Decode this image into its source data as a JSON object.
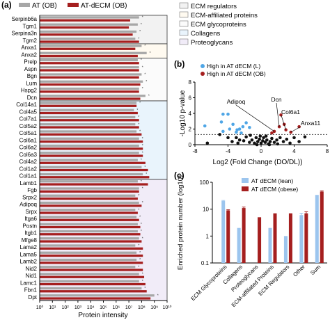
{
  "colors": {
    "at_ob": "#a7a7a7",
    "at_decm_ob": "#a51f1f",
    "lean": "#9cc5ee",
    "obese": "#a51f1f",
    "ecm_regulators_bg": "#f2f2f2",
    "affiliated_bg": "#fffaf0",
    "glycoproteins_bg": "#fbfbfb",
    "collagens_bg": "#e9f4fc",
    "proteoglycans_bg": "#f1ecf8",
    "volcano_blue": "#4fa6e6",
    "volcano_red": "#a51f1f",
    "volcano_black": "#111111"
  },
  "panel_a": {
    "label": "(a)",
    "legend": [
      "AT (OB)",
      "AT-dECM (OB)"
    ],
    "xlabel": "Protein intensity",
    "xtick_labels": [
      "10⁰",
      "10¹",
      "10²",
      "10³",
      "10⁴",
      "10⁵",
      "10⁶",
      "10⁷",
      "10⁸",
      "10⁹",
      "10¹⁰"
    ],
    "category_legend": [
      "ECM regulators",
      "ECM-affiliated proteins",
      "ECM glycoproteins",
      "Collagens",
      "Proteoglycans"
    ]
  },
  "panel_b": {
    "label": "(b)",
    "legend": [
      "High in AT dECM (L)",
      "High in AT dECM (OB)"
    ],
    "xlabel": "Log2 (Fold Change (DO/DL))",
    "ylabel": "-Log10 p-value",
    "annotations": [
      "Adipoq",
      "Dcn",
      "Col6a1",
      "Anxa11"
    ],
    "xtick_labels": [
      "-8",
      "-4",
      "0",
      "4",
      "8"
    ],
    "ytick_labels": [
      "0",
      "2",
      "4",
      "6",
      "8"
    ]
  },
  "panel_c": {
    "label": "(c)",
    "legend": [
      "AT dECM (lean)",
      "AT dECM (obese)"
    ],
    "ylabel": "Enriched protein number (log10)",
    "ytick_labels": [
      "100",
      "10",
      "1",
      "0.1"
    ]
  },
  "chart_data": [
    {
      "type": "bar",
      "orientation": "horizontal",
      "scale": "log10",
      "xlim": [
        1,
        10000000000
      ],
      "categories": [
        "Serpinb6a",
        "Tgm1",
        "Serpina3n",
        "Tgm2",
        "Anxa1",
        "Anxa2",
        "Prelp",
        "Aspn",
        "Bgn",
        "Lum",
        "Hspg2",
        "Dcn",
        "Col14a1",
        "Col4a5",
        "Col7a1",
        "Col5a2",
        "Col5a1",
        "Col6a1",
        "Col6a2",
        "Col6a3",
        "Col4a2",
        "Col1a2",
        "Col1a1",
        "Lamb1",
        "Fgb",
        "Srpx2",
        "Adipoq",
        "Srpx",
        "Itga6",
        "Postn",
        "Itgb1",
        "Mfge8",
        "Lama2",
        "Lama5",
        "Lamb2",
        "Nid2",
        "Nid1",
        "Lamc1",
        "Fbn1",
        "Dpt"
      ],
      "groups": [
        {
          "name": "ECM regulators",
          "members": [
            "Serpinb6a",
            "Tgm1",
            "Serpina3n",
            "Tgm2"
          ]
        },
        {
          "name": "ECM-affiliated proteins",
          "members": [
            "Anxa1",
            "Anxa2"
          ]
        },
        {
          "name": "Proteoglycans",
          "members": [
            "Prelp",
            "Aspn",
            "Bgn",
            "Lum",
            "Hspg2",
            "Dcn"
          ]
        },
        {
          "name": "Collagens",
          "members": [
            "Col14a1",
            "Col4a5",
            "Col7a1",
            "Col5a2",
            "Col5a1",
            "Col6a1",
            "Col6a2",
            "Col6a3",
            "Col4a2",
            "Col1a2",
            "Col1a1"
          ]
        },
        {
          "name": "ECM glycoproteins",
          "members": [
            "Lamb1",
            "Fgb",
            "Srpx2",
            "Adipoq",
            "Srpx",
            "Itga6",
            "Postn",
            "Itgb1",
            "Mfge8",
            "Lama2",
            "Lama5",
            "Lamb2",
            "Nid2",
            "Nid1",
            "Lamc1",
            "Fbn1",
            "Dpt"
          ]
        }
      ],
      "series": [
        {
          "name": "AT (OB)",
          "values": [
            63000000,
            50000000,
            40000000,
            32000000,
            100000000,
            250000000,
            50000000,
            63000000,
            100000000,
            126000000,
            63000000,
            200000000,
            40000000,
            25000000,
            32000000,
            32000000,
            40000000,
            63000000,
            63000000,
            63000000,
            50000000,
            100000000,
            126000000,
            50000000,
            63000000,
            32000000,
            63000000,
            32000000,
            40000000,
            50000000,
            50000000,
            63000000,
            32000000,
            40000000,
            40000000,
            32000000,
            63000000,
            63000000,
            100000000,
            1000000000
          ]
        },
        {
          "name": "AT-dECM (OB)",
          "values": [
            12600000,
            10000000,
            20000000,
            63000000,
            32000000,
            50000000,
            63000000,
            63000000,
            63000000,
            79000000,
            63000000,
            79000000,
            40000000,
            50000000,
            63000000,
            63000000,
            100000000,
            126000000,
            126000000,
            126000000,
            200000000,
            316000000,
            398000000,
            316000000,
            63000000,
            50000000,
            100000000,
            50000000,
            63000000,
            79000000,
            79000000,
            100000000,
            126000000,
            126000000,
            126000000,
            126000000,
            158000000,
            200000000,
            251000000,
            500000000
          ]
        }
      ]
    },
    {
      "type": "scatter",
      "xlim": [
        -8,
        8
      ],
      "ylim": [
        0,
        8
      ],
      "threshold_y": 1.3,
      "series": [
        {
          "name": "High in AT dECM (L)",
          "points": [
            [
              -6.8,
              2.4
            ],
            [
              -4.6,
              3.9
            ],
            [
              -4.0,
              3.9
            ],
            [
              -4.8,
              2.9
            ],
            [
              -3.4,
              2.6
            ],
            [
              -2.6,
              2.0
            ],
            [
              -2.2,
              2.3
            ],
            [
              -3.8,
              2.0
            ],
            [
              -1.8,
              2.8
            ],
            [
              -2.4,
              1.5
            ],
            [
              -3.0,
              1.6
            ],
            [
              -1.4,
              2.2
            ],
            [
              -4.6,
              1.7
            ],
            [
              -2.9,
              1.9
            ]
          ]
        },
        {
          "name": "High in AT dECM (OB)",
          "points": [
            [
              2.4,
              3.8
            ],
            [
              2.2,
              2.3
            ],
            [
              2.8,
              2.6
            ],
            [
              3.0,
              1.9
            ],
            [
              1.6,
              1.7
            ],
            [
              4.6,
              2.3
            ],
            [
              1.3,
              1.5
            ],
            [
              3.6,
              1.6
            ]
          ]
        },
        {
          "name": "Not significant",
          "points": [
            [
              -6.5,
              0.2
            ],
            [
              -5.0,
              1.3
            ],
            [
              -4.0,
              0.9
            ],
            [
              -3.5,
              0.4
            ],
            [
              -3.0,
              0.9
            ],
            [
              -2.6,
              0.6
            ],
            [
              -2.1,
              0.5
            ],
            [
              -1.8,
              1.0
            ],
            [
              -1.4,
              0.3
            ],
            [
              -1.1,
              0.6
            ],
            [
              -0.8,
              0.2
            ],
            [
              -0.6,
              0.9
            ],
            [
              -0.4,
              0.4
            ],
            [
              -0.2,
              0.7
            ],
            [
              0.0,
              0.2
            ],
            [
              0.2,
              0.5
            ],
            [
              0.3,
              0.9
            ],
            [
              0.5,
              0.3
            ],
            [
              0.7,
              0.6
            ],
            [
              0.9,
              0.1
            ],
            [
              1.1,
              0.4
            ],
            [
              1.3,
              0.8
            ],
            [
              1.6,
              0.3
            ],
            [
              1.9,
              0.6
            ],
            [
              2.3,
              0.9
            ],
            [
              2.7,
              0.4
            ],
            [
              3.1,
              0.7
            ],
            [
              3.5,
              0.2
            ],
            [
              4.0,
              0.9
            ],
            [
              4.6,
              0.4
            ],
            [
              5.3,
              1.0
            ],
            [
              -0.1,
              1.1
            ],
            [
              0.6,
              1.1
            ],
            [
              -1.3,
              1.2
            ],
            [
              1.0,
              0.0
            ],
            [
              -0.5,
              0.0
            ],
            [
              2.0,
              0.1
            ],
            [
              -2.8,
              0.2
            ]
          ]
        }
      ],
      "annotated_points": [
        {
          "label": "Adipoq",
          "x": 1.6,
          "y": 1.7
        },
        {
          "label": "Dcn",
          "x": 2.2,
          "y": 2.3
        },
        {
          "label": "Col6a1",
          "x": 3.0,
          "y": 1.9
        },
        {
          "label": "Anxa11",
          "x": 3.6,
          "y": 1.6
        }
      ]
    },
    {
      "type": "bar",
      "scale": "log10",
      "ylim": [
        0.1,
        100
      ],
      "categories": [
        "ECM Glycoproteins",
        "Collagens",
        "Proteoglycans",
        "ECM-affiliated Proteins",
        "ECM Regulators",
        "Other",
        "Sum"
      ],
      "series": [
        {
          "name": "AT dECM (lean)",
          "values": [
            20,
            2,
            0,
            2,
            1,
            6,
            32
          ],
          "errors": [
            1,
            0,
            0,
            0,
            0,
            1,
            1
          ]
        },
        {
          "name": "AT dECM (obese)",
          "values": [
            9,
            11,
            5,
            7,
            7,
            7,
            45
          ],
          "errors": [
            0.5,
            1,
            0,
            0,
            0,
            1,
            3
          ]
        }
      ]
    }
  ]
}
